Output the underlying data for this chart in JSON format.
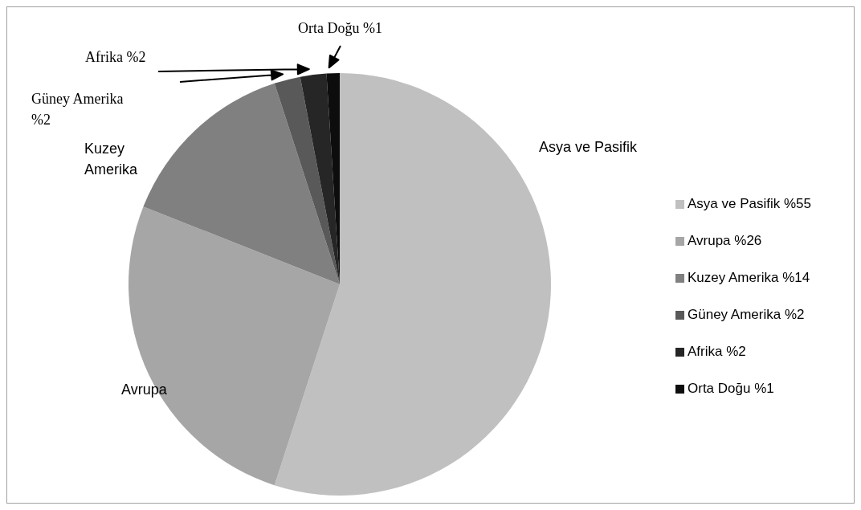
{
  "chart_data": {
    "type": "pie",
    "categories": [
      "Asya ve Pasifik",
      "Avrupa",
      "Kuzey Amerika",
      "Güney Amerika",
      "Afrika",
      "Orta Doğu"
    ],
    "values": [
      55,
      26,
      14,
      2,
      2,
      1
    ],
    "value_labels": [
      "%55",
      "%26",
      "%14",
      "%2",
      "%2",
      "%1"
    ],
    "colors": [
      "#c0c0c0",
      "#a6a6a6",
      "#808080",
      "#595959",
      "#262626",
      "#0d0d0d"
    ],
    "annotations": [
      "Asya ve Pasifik",
      "Avrupa",
      "Kuzey Amerika",
      "Güney Amerika %2",
      "Afrika %2",
      "Orta Doğu %1"
    ],
    "legend": "right"
  }
}
